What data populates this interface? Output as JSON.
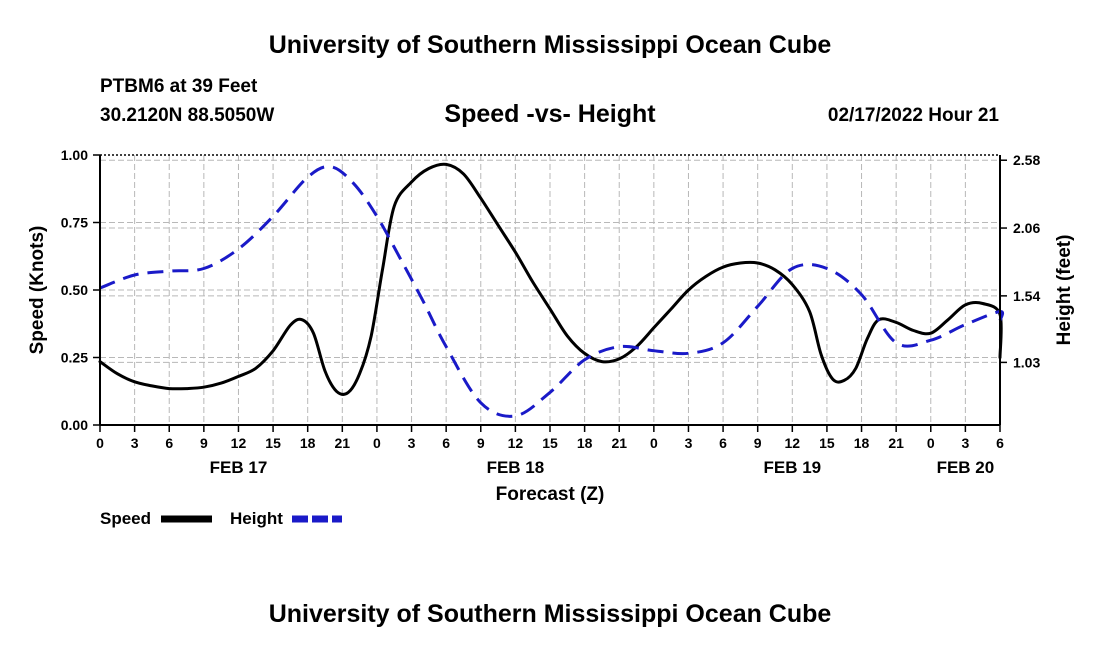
{
  "header": {
    "title": "University of Southern Mississippi Ocean Cube",
    "station": "PTBM6 at 39 Feet",
    "coords": "30.2120N  88.5050W",
    "chart_title": "Speed -vs- Height",
    "datetime": "02/17/2022 Hour 21"
  },
  "footer": {
    "title": "University of Southern Mississippi Ocean Cube"
  },
  "colors": {
    "speed": "#000000",
    "height": "#1a1ac8",
    "grid": "#b8b8b8"
  },
  "chart_data": {
    "type": "line",
    "title": "Speed -vs- Height",
    "xlabel": "Forecast (Z)",
    "ylabel": "Speed (Knots)",
    "y2label": "Height (feet)",
    "x_unit": "hours since FEB 17 00Z",
    "xlim": [
      0,
      78
    ],
    "ylim": [
      0,
      1.0
    ],
    "y2lim": [
      0.55,
      2.62
    ],
    "x_ticks": [
      0,
      3,
      6,
      9,
      12,
      15,
      18,
      21,
      24,
      27,
      30,
      33,
      36,
      39,
      42,
      45,
      48,
      51,
      54,
      57,
      60,
      63,
      66,
      69,
      72,
      75,
      78
    ],
    "x_tick_labels": [
      "0",
      "3",
      "6",
      "9",
      "12",
      "15",
      "18",
      "21",
      "0",
      "3",
      "6",
      "9",
      "12",
      "15",
      "18",
      "21",
      "0",
      "3",
      "6",
      "9",
      "12",
      "15",
      "18",
      "21",
      "0",
      "3",
      "6"
    ],
    "day_labels": [
      {
        "x": 12,
        "label": "FEB 17"
      },
      {
        "x": 36,
        "label": "FEB 18"
      },
      {
        "x": 60,
        "label": "FEB 19"
      },
      {
        "x": 75,
        "label": "FEB 20"
      }
    ],
    "y_ticks": [
      0.0,
      0.25,
      0.5,
      0.75,
      1.0
    ],
    "y_tick_labels": [
      "0.00",
      "0.25",
      "0.50",
      "0.75",
      "1.00"
    ],
    "y2_ticks": [
      1.03,
      1.54,
      2.06,
      2.58
    ],
    "y2_tick_labels": [
      "1.03",
      "1.54",
      "2.06",
      "2.58"
    ],
    "grid": true,
    "series": [
      {
        "name": "Speed",
        "axis": "left",
        "style": "solid",
        "x": [
          0,
          1.5,
          3,
          4.5,
          6,
          7.5,
          9,
          10.5,
          12,
          13.5,
          15,
          16.5,
          17.5,
          18.5,
          19.5,
          20.5,
          21.5,
          22.5,
          23.5,
          24.5,
          25.5,
          27,
          28.5,
          30,
          31.5,
          33,
          34.5,
          36,
          37.5,
          39,
          40.5,
          42,
          43.5,
          45,
          46.5,
          48,
          49.5,
          51,
          52.5,
          54,
          55.5,
          57,
          58.5,
          60,
          61.5,
          62.5,
          63.5,
          64.5,
          65.5,
          66.5,
          67.5,
          69,
          70.5,
          72,
          73.5,
          75,
          76.5,
          78
        ],
        "values": [
          0.235,
          0.19,
          0.16,
          0.145,
          0.135,
          0.135,
          0.14,
          0.155,
          0.18,
          0.21,
          0.275,
          0.37,
          0.39,
          0.34,
          0.2,
          0.125,
          0.12,
          0.19,
          0.33,
          0.58,
          0.81,
          0.9,
          0.95,
          0.965,
          0.93,
          0.84,
          0.74,
          0.64,
          0.53,
          0.43,
          0.33,
          0.265,
          0.235,
          0.245,
          0.29,
          0.36,
          0.43,
          0.5,
          0.55,
          0.585,
          0.6,
          0.6,
          0.575,
          0.52,
          0.42,
          0.26,
          0.17,
          0.165,
          0.21,
          0.32,
          0.39,
          0.38,
          0.35,
          0.34,
          0.39,
          0.445,
          0.45,
          0.41
        ],
        "tail": [
          {
            "x": 78,
            "value": 0.25
          }
        ]
      },
      {
        "name": "Height",
        "axis": "right",
        "style": "dashed",
        "x": [
          0,
          3,
          6,
          9,
          12,
          15,
          18,
          20,
          22,
          24,
          26,
          28,
          30,
          33,
          36,
          39,
          42,
          45,
          48,
          51,
          54,
          57,
          60,
          63,
          66,
          69,
          72,
          75,
          78
        ],
        "values": [
          1.6,
          1.7,
          1.73,
          1.75,
          1.9,
          2.15,
          2.45,
          2.53,
          2.4,
          2.15,
          1.83,
          1.5,
          1.15,
          0.72,
          0.62,
          0.8,
          1.05,
          1.15,
          1.12,
          1.1,
          1.18,
          1.46,
          1.75,
          1.75,
          1.55,
          1.18,
          1.2,
          1.32,
          1.42
        ],
        "tail": [
          {
            "x": 78,
            "value": 1.35
          }
        ]
      }
    ],
    "legend": [
      {
        "label": "Speed",
        "style": "solid"
      },
      {
        "label": "Height",
        "style": "dashed"
      }
    ]
  }
}
